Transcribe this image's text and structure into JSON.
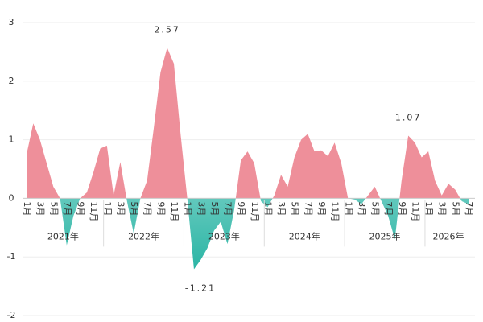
{
  "chart_data": {
    "type": "area",
    "categories": [
      "1月",
      null,
      "3月",
      null,
      "5月",
      null,
      "7月",
      null,
      "9月",
      null,
      "11月",
      null,
      "1月",
      null,
      "3月",
      null,
      "5月",
      null,
      "7月",
      null,
      "9月",
      null,
      "11月",
      null,
      "1月",
      null,
      "3月",
      null,
      "5月",
      null,
      "7月",
      null,
      "9月",
      null,
      "11月",
      null,
      "1月",
      null,
      "3月",
      null,
      "5月",
      null,
      "7月",
      null,
      "9月",
      null,
      "11月",
      null,
      "1月",
      null,
      "3月",
      null,
      "5月",
      null,
      "7月",
      null,
      "9月",
      null,
      "11月",
      null,
      "1月",
      null,
      "3月",
      null,
      "5月",
      null,
      "7月"
    ],
    "years": [
      "2021年",
      "2022年",
      "2023年",
      "2024年",
      "2025年",
      "2026年"
    ],
    "values": [
      0.75,
      1.28,
      1.0,
      0.6,
      0.2,
      0.0,
      -0.8,
      -0.3,
      0.0,
      0.1,
      0.45,
      0.85,
      0.9,
      0.05,
      0.62,
      -0.05,
      -0.6,
      0.0,
      0.3,
      1.2,
      2.15,
      2.57,
      2.3,
      1.1,
      0.0,
      -1.21,
      -1.05,
      -0.85,
      -0.55,
      -0.4,
      -0.78,
      -0.2,
      0.65,
      0.8,
      0.6,
      -0.05,
      -0.15,
      0.05,
      0.4,
      0.2,
      0.7,
      1.0,
      1.1,
      0.8,
      0.82,
      0.72,
      0.95,
      0.6,
      0.0,
      -0.02,
      -0.1,
      0.05,
      0.2,
      -0.05,
      -0.3,
      -0.7,
      0.3,
      1.07,
      0.95,
      0.7,
      0.8,
      0.3,
      0.05,
      0.25,
      0.15,
      -0.05,
      -0.1
    ],
    "value_labels": [
      null,
      null,
      null,
      null,
      null,
      null,
      null,
      null,
      null,
      null,
      null,
      null,
      null,
      null,
      null,
      null,
      null,
      null,
      null,
      null,
      null,
      "2.57",
      null,
      null,
      null,
      "-1.21",
      null,
      null,
      null,
      null,
      null,
      null,
      null,
      null,
      null,
      null,
      null,
      null,
      null,
      null,
      null,
      null,
      null,
      null,
      null,
      null,
      null,
      null,
      null,
      null,
      null,
      null,
      null,
      null,
      null,
      null,
      null,
      "1.07",
      null,
      null,
      null,
      null,
      null,
      null,
      null,
      null,
      null
    ],
    "positive_color": "#ee8f9a",
    "negative_color": "#2bb5a5",
    "ylim": [
      -2,
      3
    ],
    "yticks": [
      -2,
      -1,
      0,
      1,
      2,
      3
    ],
    "grid": true
  }
}
